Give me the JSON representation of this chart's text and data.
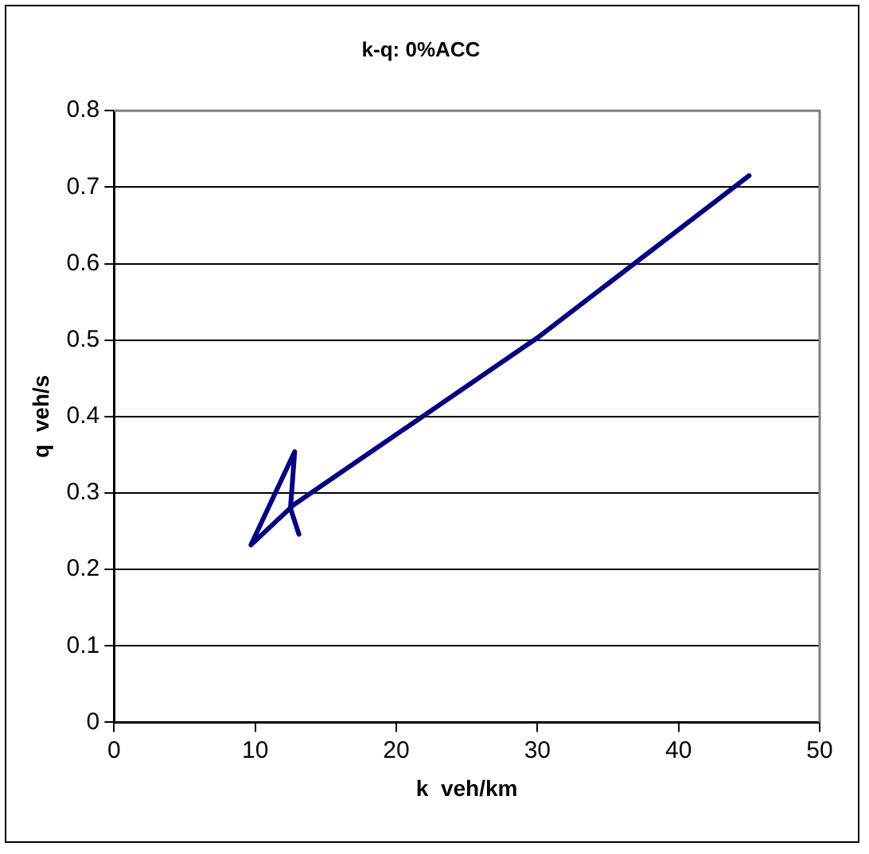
{
  "chart_data": {
    "type": "line",
    "title": "k-q: 0%ACC",
    "xlabel": "k  veh/km",
    "ylabel": "q  veh/s",
    "series": [
      {
        "color": "#000080",
        "x": [
          45.0,
          30,
          12.7,
          9.7,
          12.8,
          12.5,
          13.1
        ],
        "values": [
          0.715,
          0.503,
          0.284,
          0.232,
          0.354,
          0.28,
          0.246
        ]
      }
    ],
    "xlim": [
      0,
      50
    ],
    "xticks": [
      0,
      10,
      20,
      30,
      40,
      50
    ],
    "ylim": [
      0,
      0.8
    ],
    "yticks": [
      0,
      0.1,
      0.2,
      0.3,
      0.4,
      0.5,
      0.6,
      0.7,
      0.8
    ],
    "grid": "y",
    "legend": false,
    "marker": "none",
    "line_style": "solid"
  }
}
